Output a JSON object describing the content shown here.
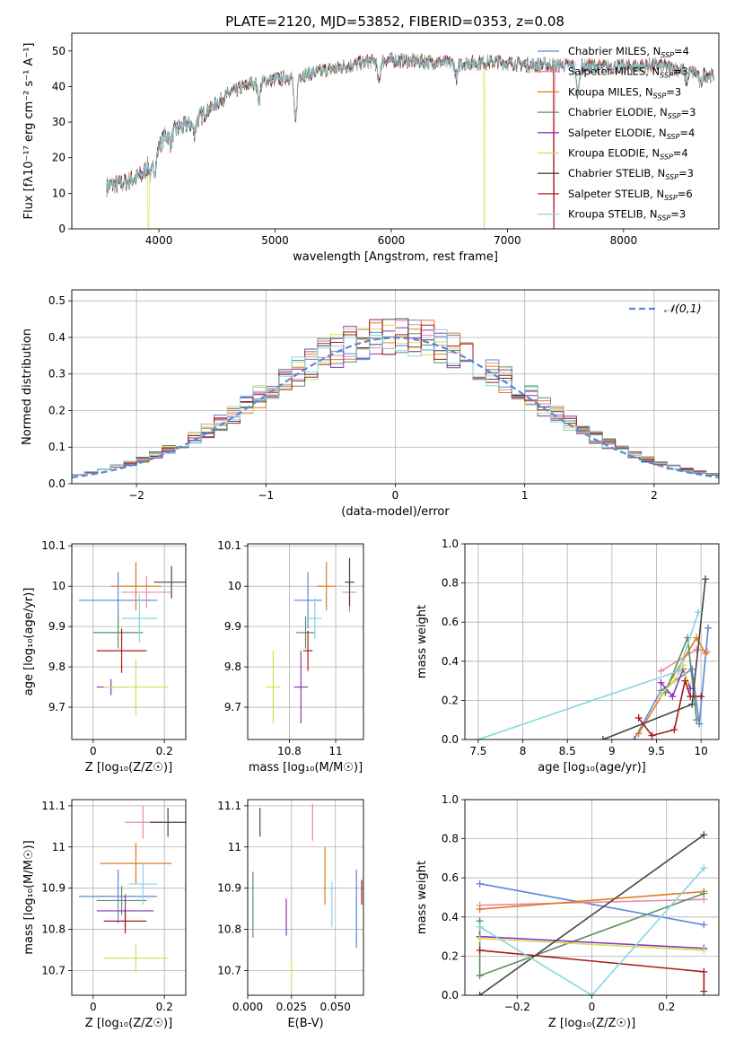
{
  "figure": {
    "title": "PLATE=2120, MJD=53852, FIBERID=0353, z=0.08"
  },
  "models": [
    {
      "family": "Chabrier",
      "lib": "MILES",
      "n": "4",
      "color": "#5b86d9"
    },
    {
      "family": "Salpeter",
      "lib": "MILES",
      "n": "3",
      "color": "#e98aaa"
    },
    {
      "family": "Kroupa",
      "lib": "MILES",
      "n": "3",
      "color": "#e07d1e"
    },
    {
      "family": "Chabrier",
      "lib": "ELODIE",
      "n": "3",
      "color": "#5f8f5f"
    },
    {
      "family": "Salpeter",
      "lib": "ELODIE",
      "n": "4",
      "color": "#8b36b5"
    },
    {
      "family": "Kroupa",
      "lib": "ELODIE",
      "n": "4",
      "color": "#d7dd57"
    },
    {
      "family": "Chabrier",
      "lib": "STELIB",
      "n": "3",
      "color": "#474747"
    },
    {
      "family": "Salpeter",
      "lib": "STELIB",
      "n": "6",
      "color": "#a81a1a"
    },
    {
      "family": "Kroupa",
      "lib": "STELIB",
      "n": "3",
      "color": "#86d6e2"
    }
  ],
  "chart_data": [
    {
      "id": "spectrum",
      "type": "line",
      "xlabel": "wavelength [Angstrom, rest frame]",
      "ylabel": "Flux [fλ10⁻¹⁷ erg cm⁻² s⁻¹ A⁻¹]",
      "xlim": [
        3250,
        8820
      ],
      "ylim": [
        0,
        55
      ],
      "xticks": [
        4000,
        5000,
        6000,
        7000,
        8000
      ],
      "yticks": [
        0,
        10,
        20,
        30,
        40,
        50
      ],
      "grid": false,
      "legend": "right",
      "continuum": [
        [
          3550,
          12
        ],
        [
          3700,
          13
        ],
        [
          3850,
          15
        ],
        [
          3950,
          20
        ],
        [
          4050,
          26
        ],
        [
          4150,
          28
        ],
        [
          4300,
          30
        ],
        [
          4450,
          34
        ],
        [
          4600,
          38
        ],
        [
          4800,
          41
        ],
        [
          5000,
          42
        ],
        [
          5200,
          43
        ],
        [
          5500,
          45
        ],
        [
          5800,
          47
        ],
        [
          6000,
          47.5
        ],
        [
          6300,
          47
        ],
        [
          6600,
          46.5
        ],
        [
          6900,
          47
        ],
        [
          7200,
          46
        ],
        [
          7500,
          46
        ],
        [
          7900,
          45.5
        ],
        [
          8300,
          46
        ],
        [
          8600,
          44
        ],
        [
          8780,
          43
        ]
      ],
      "features": [
        [
          3933,
          -4
        ],
        [
          3968,
          -4
        ],
        [
          4102,
          -3
        ],
        [
          4304,
          -3
        ],
        [
          4861,
          -5
        ],
        [
          5175,
          -13
        ],
        [
          5892,
          -6
        ],
        [
          6563,
          -4
        ],
        [
          7605,
          -8
        ],
        [
          8542,
          -3
        ],
        [
          8662,
          -3
        ]
      ],
      "spikes": [
        {
          "model": 5,
          "x": 3910,
          "y": 0
        },
        {
          "model": 5,
          "x": 6800,
          "y": 0
        },
        {
          "model": 1,
          "x": 7400,
          "y": 0
        },
        {
          "model": 7,
          "x": 7400,
          "y": 0
        }
      ]
    },
    {
      "id": "residuals",
      "type": "histogram",
      "xlabel": "(data-model)/error",
      "ylabel": "Normed distribution",
      "xlim": [
        -2.5,
        2.5
      ],
      "ylim": [
        0,
        0.53
      ],
      "xticks": [
        -2,
        -1,
        0,
        1,
        2
      ],
      "yticks": [
        0.0,
        0.1,
        0.2,
        0.3,
        0.4,
        0.5
      ],
      "grid": true,
      "legend": "top-right",
      "reference": {
        "label": "𝒩(0,1)",
        "color": "#5b86d9",
        "mu": 0,
        "sigma": 1
      },
      "bin_width": 0.1
    },
    {
      "id": "age_vs_Z",
      "type": "errorbar",
      "xlabel": "Z [log₁₀(Z/Z☉)]",
      "ylabel": "age  [log₁₀(age/yr)]",
      "xlim": [
        -0.06,
        0.26
      ],
      "ylim": [
        9.62,
        10.105
      ],
      "xticks": [
        0.0,
        0.2
      ],
      "yticks": [
        9.7,
        9.8,
        9.9,
        10.0,
        10.1
      ],
      "grid": true,
      "points": [
        {
          "m": 0,
          "x": 0.07,
          "y": 9.965,
          "xe": 0.11,
          "ye": 0.07
        },
        {
          "m": 1,
          "x": 0.15,
          "y": 9.985,
          "xe": 0.07,
          "ye": 0.04
        },
        {
          "m": 2,
          "x": 0.12,
          "y": 10.0,
          "xe": 0.07,
          "ye": 0.06
        },
        {
          "m": 3,
          "x": 0.07,
          "y": 9.885,
          "xe": 0.07,
          "ye": 0.04
        },
        {
          "m": 4,
          "x": 0.05,
          "y": 9.75,
          "xe": 0.04,
          "ye": 0.02
        },
        {
          "m": 5,
          "x": 0.12,
          "y": 9.75,
          "xe": 0.09,
          "ye": 0.07
        },
        {
          "m": 6,
          "x": 0.22,
          "y": 10.01,
          "xe": 0.05,
          "ye": 0.04
        },
        {
          "m": 7,
          "x": 0.08,
          "y": 9.84,
          "xe": 0.07,
          "ye": 0.055
        },
        {
          "m": 8,
          "x": 0.13,
          "y": 9.92,
          "xe": 0.05,
          "ye": 0.06
        }
      ]
    },
    {
      "id": "age_vs_mass",
      "type": "errorbar",
      "xlabel": "mass [log₁₀(M/M☉)]",
      "ylabel": "",
      "xlim": [
        10.62,
        11.12
      ],
      "ylim": [
        9.62,
        10.105
      ],
      "xticks": [
        10.8,
        11.0
      ],
      "yticks": [
        9.7,
        9.8,
        9.9,
        10.0,
        10.1
      ],
      "grid": true,
      "points": [
        {
          "m": 0,
          "x": 10.88,
          "y": 9.965,
          "xe": 0.06,
          "ye": 0.07
        },
        {
          "m": 1,
          "x": 11.06,
          "y": 9.985,
          "xe": 0.03,
          "ye": 0.05
        },
        {
          "m": 2,
          "x": 10.96,
          "y": 10.0,
          "xe": 0.04,
          "ye": 0.06
        },
        {
          "m": 3,
          "x": 10.87,
          "y": 9.885,
          "xe": 0.04,
          "ye": 0.04
        },
        {
          "m": 4,
          "x": 10.85,
          "y": 9.75,
          "xe": 0.03,
          "ye": 0.09
        },
        {
          "m": 5,
          "x": 10.73,
          "y": 9.75,
          "xe": 0.03,
          "ye": 0.09
        },
        {
          "m": 6,
          "x": 11.06,
          "y": 10.01,
          "xe": 0.02,
          "ye": 0.06
        },
        {
          "m": 7,
          "x": 10.88,
          "y": 9.84,
          "xe": 0.02,
          "ye": 0.05
        },
        {
          "m": 8,
          "x": 10.91,
          "y": 9.92,
          "xe": 0.03,
          "ye": 0.05
        }
      ]
    },
    {
      "id": "mw_vs_age",
      "type": "line",
      "xlabel": "age  [log₁₀(age/yr)]",
      "ylabel": "mass weight",
      "xlim": [
        7.35,
        10.2
      ],
      "ylim": [
        0,
        1.0
      ],
      "xticks": [
        7.5,
        8.0,
        8.5,
        9.0,
        9.5,
        10.0
      ],
      "yticks": [
        0.0,
        0.2,
        0.4,
        0.6,
        0.8,
        1.0
      ],
      "grid": true,
      "series": [
        {
          "m": 0,
          "pts": [
            [
              9.25,
              0.0
            ],
            [
              9.55,
              0.25
            ],
            [
              9.9,
              0.36
            ],
            [
              9.98,
              0.08
            ],
            [
              10.08,
              0.57
            ]
          ]
        },
        {
          "m": 1,
          "pts": [
            [
              9.55,
              0.35
            ],
            [
              9.95,
              0.46
            ],
            [
              10.07,
              0.45
            ]
          ]
        },
        {
          "m": 2,
          "pts": [
            [
              9.3,
              0.03
            ],
            [
              9.95,
              0.52
            ],
            [
              10.05,
              0.44
            ]
          ]
        },
        {
          "m": 3,
          "pts": [
            [
              9.6,
              0.24
            ],
            [
              9.85,
              0.52
            ],
            [
              9.95,
              0.1
            ]
          ]
        },
        {
          "m": 4,
          "pts": [
            [
              9.55,
              0.29
            ],
            [
              9.68,
              0.22
            ],
            [
              9.8,
              0.36
            ],
            [
              9.88,
              0.26
            ]
          ]
        },
        {
          "m": 5,
          "pts": [
            [
              9.55,
              0.23
            ],
            [
              9.7,
              0.3
            ],
            [
              9.8,
              0.38
            ],
            [
              9.85,
              0.29
            ]
          ]
        },
        {
          "m": 6,
          "pts": [
            [
              8.9,
              0.0
            ],
            [
              9.9,
              0.18
            ],
            [
              10.05,
              0.82
            ]
          ]
        },
        {
          "m": 7,
          "pts": [
            [
              9.3,
              0.11
            ],
            [
              9.45,
              0.02
            ],
            [
              9.7,
              0.05
            ],
            [
              9.82,
              0.3
            ],
            [
              9.88,
              0.22
            ],
            [
              10.0,
              0.22
            ]
          ]
        },
        {
          "m": 8,
          "pts": [
            [
              7.5,
              0.0
            ],
            [
              9.75,
              0.35
            ],
            [
              9.97,
              0.65
            ]
          ]
        }
      ]
    },
    {
      "id": "mass_vs_Z",
      "type": "errorbar",
      "xlabel": "Z [log₁₀(Z/Z☉)]",
      "ylabel": "mass [log₁₀(M/M☉)]",
      "xlim": [
        -0.06,
        0.26
      ],
      "ylim": [
        10.64,
        11.115
      ],
      "xticks": [
        0.0,
        0.2
      ],
      "yticks": [
        10.7,
        10.8,
        10.9,
        11.0,
        11.1
      ],
      "grid": true,
      "points": [
        {
          "m": 0,
          "x": 0.07,
          "y": 10.88,
          "xe": 0.11,
          "ye": 0.065
        },
        {
          "m": 1,
          "x": 0.14,
          "y": 11.06,
          "xe": 0.05,
          "ye": 0.04
        },
        {
          "m": 2,
          "x": 0.12,
          "y": 10.96,
          "xe": 0.1,
          "ye": 0.05
        },
        {
          "m": 3,
          "x": 0.08,
          "y": 10.87,
          "xe": 0.07,
          "ye": 0.035
        },
        {
          "m": 4,
          "x": 0.09,
          "y": 10.845,
          "xe": 0.08,
          "ye": 0.04
        },
        {
          "m": 5,
          "x": 0.12,
          "y": 10.73,
          "xe": 0.09,
          "ye": 0.035
        },
        {
          "m": 6,
          "x": 0.21,
          "y": 11.06,
          "xe": 0.05,
          "ye": 0.035
        },
        {
          "m": 7,
          "x": 0.09,
          "y": 10.82,
          "xe": 0.06,
          "ye": 0.03
        },
        {
          "m": 8,
          "x": 0.14,
          "y": 10.91,
          "xe": 0.04,
          "ye": 0.05
        }
      ]
    },
    {
      "id": "mass_vs_ebv",
      "type": "errorbar",
      "xlabel": "E(B-V)",
      "ylabel": "",
      "xlim": [
        0.0,
        0.066
      ],
      "ylim": [
        10.64,
        11.115
      ],
      "xticks": [
        0.0,
        0.025,
        0.05
      ],
      "xticklabels": [
        "0.000",
        "0.025",
        "0.050"
      ],
      "yticks": [
        10.7,
        10.8,
        10.9,
        11.0,
        11.1
      ],
      "grid": true,
      "points": [
        {
          "m": 0,
          "x": 0.062,
          "y": 10.85,
          "xe": 0,
          "ye": 0.095
        },
        {
          "m": 1,
          "x": 0.037,
          "y": 11.06,
          "xe": 0,
          "ye": 0.045
        },
        {
          "m": 2,
          "x": 0.044,
          "y": 10.93,
          "xe": 0,
          "ye": 0.07
        },
        {
          "m": 3,
          "x": 0.003,
          "y": 10.86,
          "xe": 0,
          "ye": 0.08
        },
        {
          "m": 4,
          "x": 0.022,
          "y": 10.83,
          "xe": 0,
          "ye": 0.045
        },
        {
          "m": 5,
          "x": 0.025,
          "y": 10.69,
          "xe": 0,
          "ye": 0.035
        },
        {
          "m": 6,
          "x": 0.007,
          "y": 11.06,
          "xe": 0,
          "ye": 0.035
        },
        {
          "m": 7,
          "x": 0.065,
          "y": 10.89,
          "xe": 0,
          "ye": 0.03
        },
        {
          "m": 8,
          "x": 0.048,
          "y": 10.86,
          "xe": 0,
          "ye": 0.055
        }
      ]
    },
    {
      "id": "mw_vs_Z",
      "type": "line",
      "xlabel": "Z [log₁₀(Z/Z☉)]",
      "ylabel": "mass weight",
      "xlim": [
        -0.34,
        0.34
      ],
      "ylim": [
        0,
        1.0
      ],
      "xticks": [
        -0.2,
        0.0,
        0.2
      ],
      "yticks": [
        0.0,
        0.2,
        0.4,
        0.6,
        0.8,
        1.0
      ],
      "grid": true,
      "series": [
        {
          "m": 0,
          "pts": [
            [
              -0.3,
              0.57
            ],
            [
              0.3,
              0.36
            ]
          ]
        },
        {
          "m": 1,
          "pts": [
            [
              -0.3,
              0.46
            ],
            [
              0.3,
              0.49
            ]
          ]
        },
        {
          "m": 2,
          "pts": [
            [
              -0.3,
              0.44
            ],
            [
              0.3,
              0.53
            ]
          ]
        },
        {
          "m": 3,
          "pts": [
            [
              -0.3,
              0.38
            ],
            [
              -0.3,
              0.1
            ],
            [
              0.3,
              0.52
            ]
          ]
        },
        {
          "m": 4,
          "pts": [
            [
              -0.3,
              0.3
            ],
            [
              0.3,
              0.24
            ]
          ]
        },
        {
          "m": 5,
          "pts": [
            [
              -0.3,
              0.29
            ],
            [
              0.3,
              0.23
            ]
          ]
        },
        {
          "m": 6,
          "pts": [
            [
              -0.3,
              0.0
            ],
            [
              0.3,
              0.82
            ]
          ]
        },
        {
          "m": 7,
          "pts": [
            [
              -0.3,
              0.23
            ],
            [
              0.3,
              0.12
            ],
            [
              0.3,
              0.02
            ]
          ]
        },
        {
          "m": 8,
          "pts": [
            [
              -0.3,
              0.35
            ],
            [
              0.0,
              0.0
            ],
            [
              0.3,
              0.65
            ]
          ]
        }
      ]
    }
  ]
}
